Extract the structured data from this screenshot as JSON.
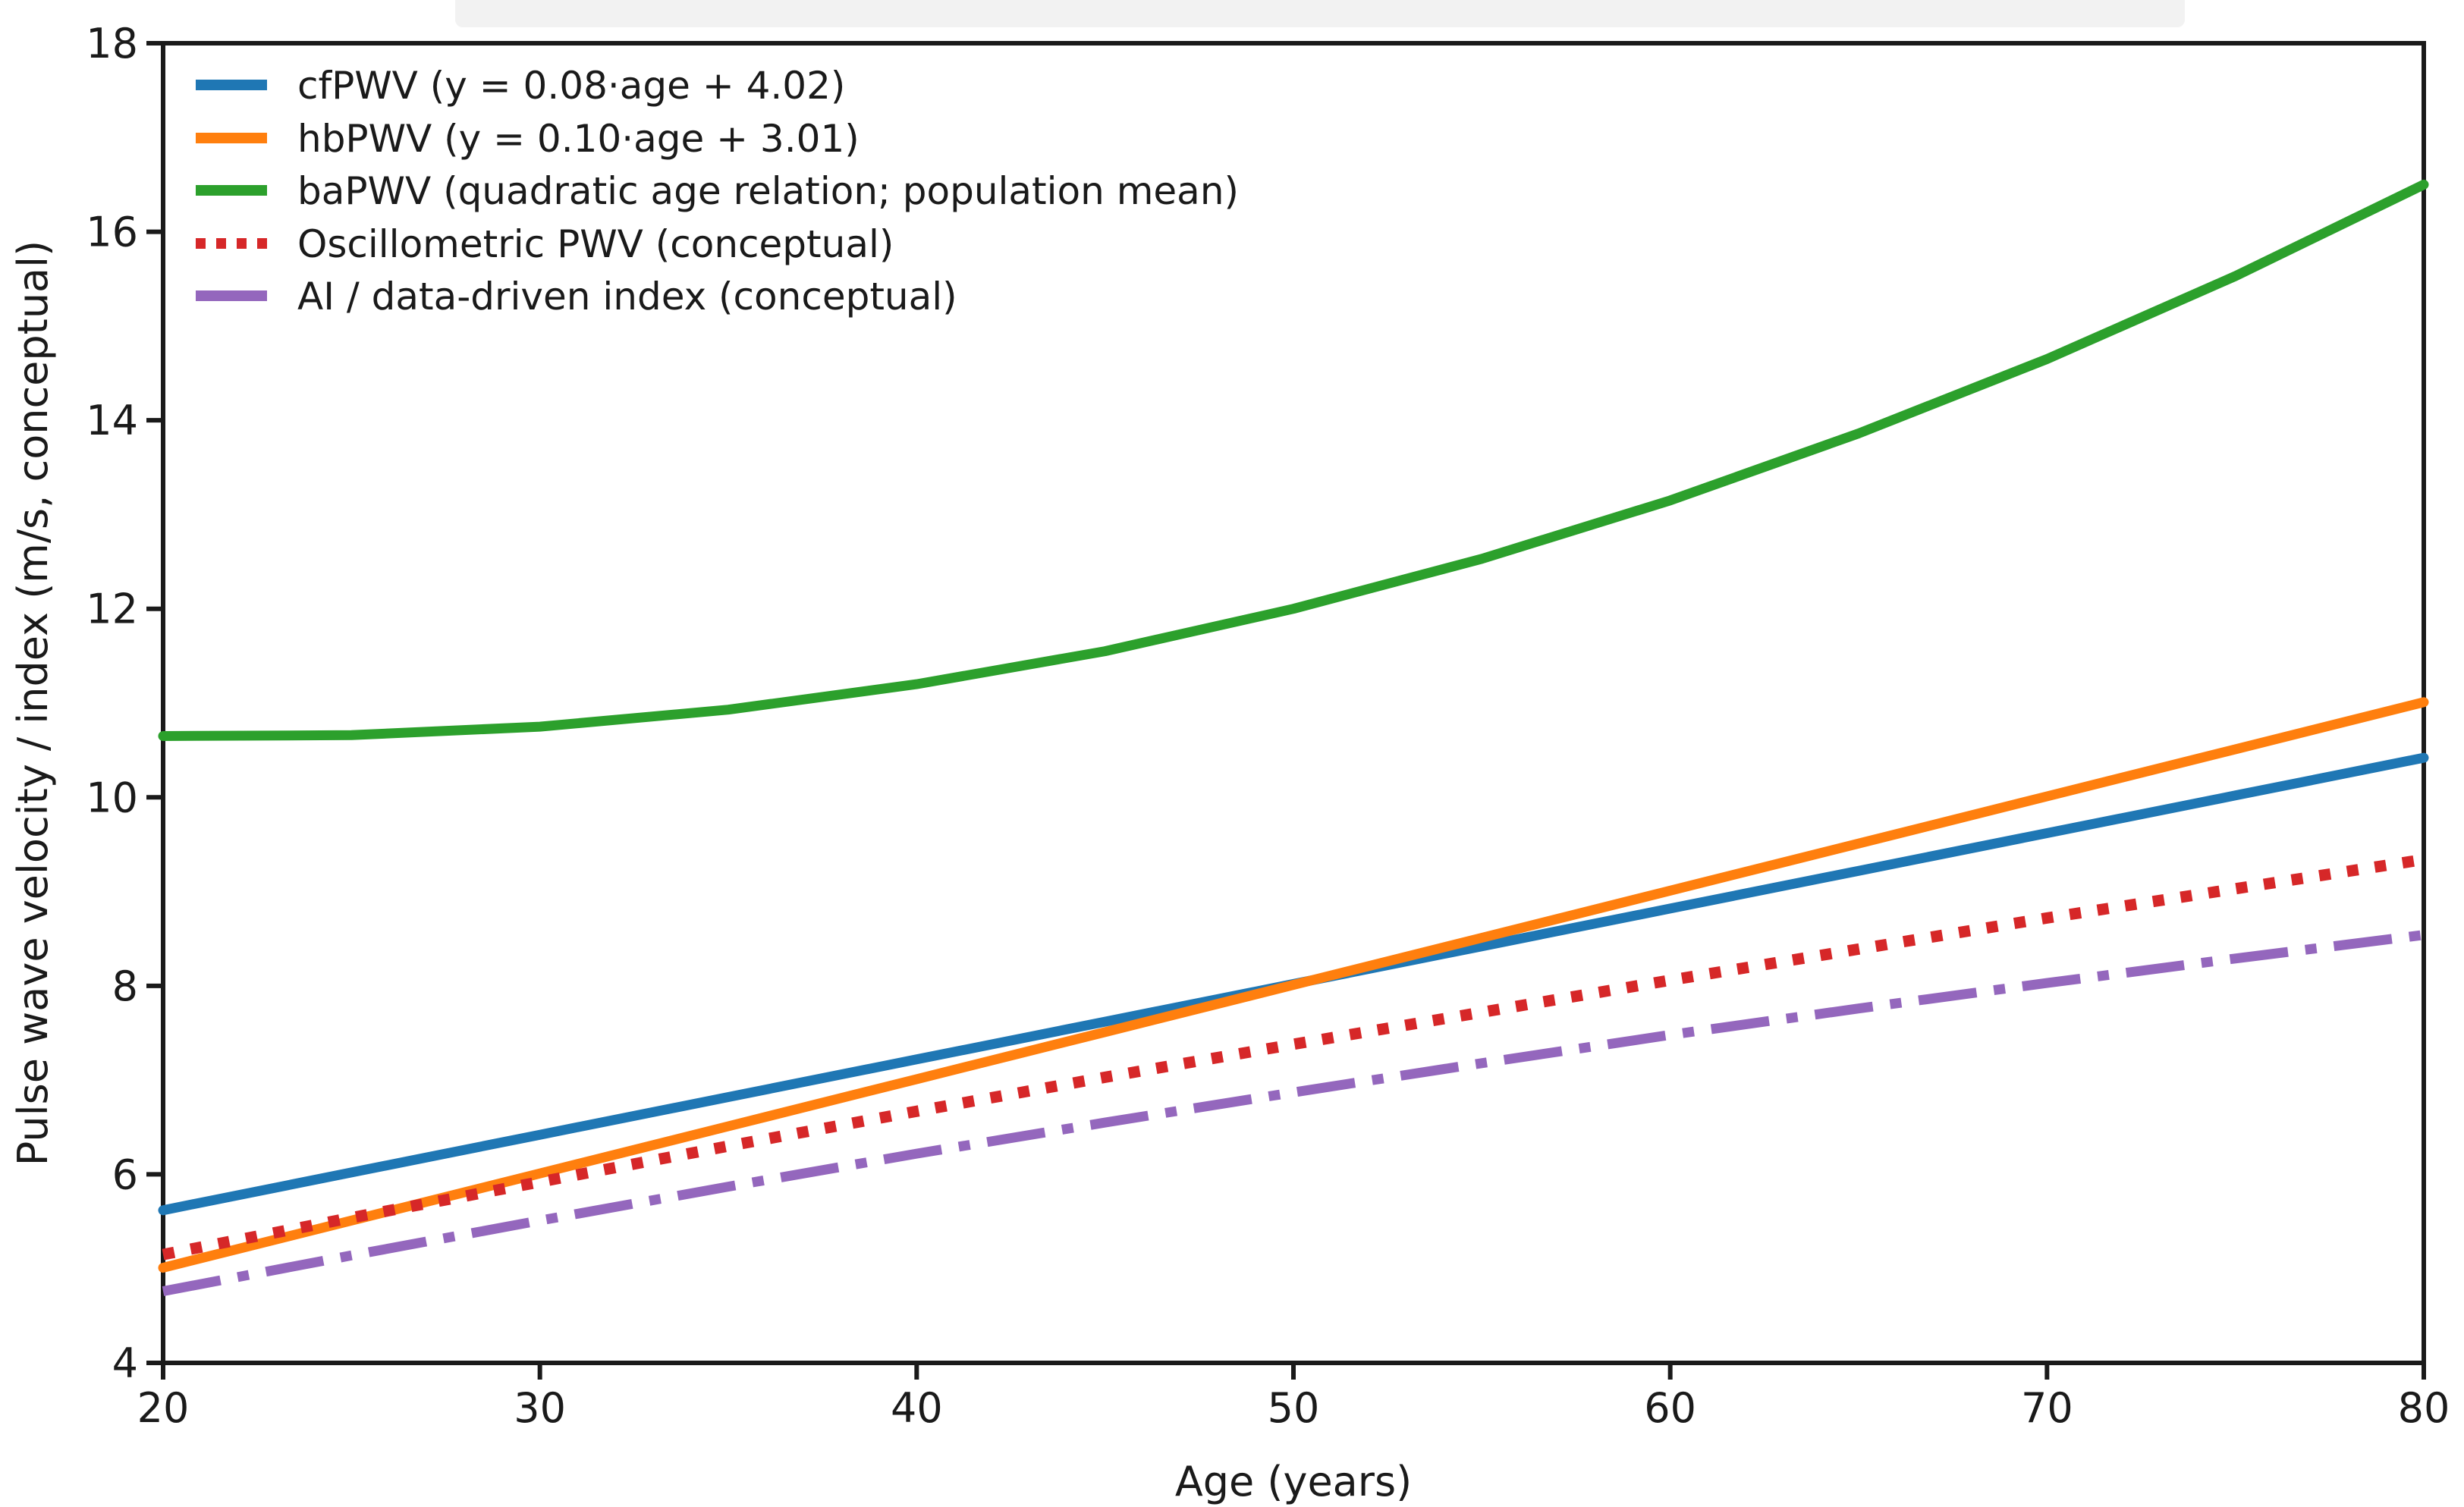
{
  "figure": {
    "background": "#ffffff",
    "text_color": "#1a1a1a",
    "cropped_title_artifact": true
  },
  "chart_data": {
    "type": "line",
    "title": "",
    "xlabel": "Age (years)",
    "ylabel": "Pulse wave velocity / index (m/s, conceptual)",
    "xlim": [
      20,
      80
    ],
    "ylim": [
      4,
      18
    ],
    "xticks": [
      20,
      30,
      40,
      50,
      60,
      70,
      80
    ],
    "yticks": [
      4,
      6,
      8,
      10,
      12,
      14,
      16,
      18
    ],
    "grid": false,
    "legend_position": "upper-left",
    "x": [
      20,
      25,
      30,
      35,
      40,
      45,
      50,
      55,
      60,
      65,
      70,
      75,
      80
    ],
    "series": [
      {
        "name": "cfPWV (y = 0.08·age + 4.02)",
        "color": "#1f77b4",
        "style": "solid",
        "values": [
          5.62,
          6.02,
          6.42,
          6.82,
          7.22,
          7.62,
          8.02,
          8.42,
          8.82,
          9.22,
          9.62,
          10.02,
          10.42
        ]
      },
      {
        "name": "hbPWV (y = 0.10·age + 3.01)",
        "color": "#ff7f0e",
        "style": "solid",
        "values": [
          5.01,
          5.51,
          6.01,
          6.51,
          7.01,
          7.51,
          8.01,
          8.51,
          9.01,
          9.51,
          10.01,
          10.51,
          11.01
        ]
      },
      {
        "name": "baPWV (quadratic age relation; population mean)",
        "color": "#2ca02c",
        "style": "solid",
        "values": [
          10.65,
          10.66,
          10.75,
          10.93,
          11.2,
          11.55,
          12.0,
          12.53,
          13.15,
          13.86,
          14.65,
          15.53,
          16.5
        ]
      },
      {
        "name": "Oscillometric PWV (conceptual)",
        "color": "#d62728",
        "style": "dotted",
        "values": [
          5.15,
          5.54,
          5.92,
          6.3,
          6.67,
          7.03,
          7.38,
          7.72,
          8.06,
          8.39,
          8.72,
          9.03,
          9.34
        ]
      },
      {
        "name": "AI / data-driven index (conceptual)",
        "color": "#9467bd",
        "style": "dashdot",
        "values": [
          4.76,
          5.14,
          5.51,
          5.87,
          6.22,
          6.55,
          6.87,
          7.18,
          7.48,
          7.76,
          8.03,
          8.29,
          8.54
        ]
      }
    ]
  }
}
